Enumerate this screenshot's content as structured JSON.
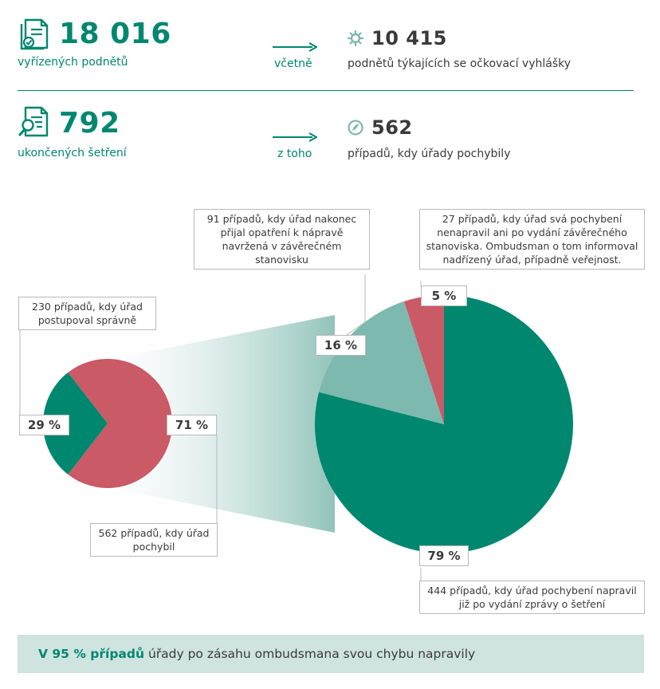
{
  "stats": {
    "top_left": {
      "value": "18 016",
      "label": "vyřízených podnětů",
      "icon": "document-check-icon"
    },
    "top_connector": "včetně",
    "top_right": {
      "value": "10 415",
      "label": "podnětů týkajících se očkovací vyhlášky",
      "icon": "virus-icon"
    },
    "bottom_left": {
      "value": "792",
      "label": "ukončených šetření",
      "icon": "document-search-icon"
    },
    "bottom_connector": "z toho",
    "bottom_right": {
      "value": "562",
      "label": "případů, kdy úřady pochybily",
      "icon": "feather-icon"
    }
  },
  "colors": {
    "green": "#00876f",
    "light_green": "#7db9ae",
    "red": "#c95a66",
    "footer_bg": "#cfe3df"
  },
  "chart_data": [
    {
      "type": "pie",
      "slices": [
        {
          "label": "29 %",
          "value": 29,
          "color": "#00876f",
          "callout": "230 případů, kdy úřad postupoval správně"
        },
        {
          "label": "71 %",
          "value": 71,
          "color": "#c95a66",
          "callout": "562 případů, kdy úřad pochybil"
        }
      ]
    },
    {
      "type": "pie",
      "slices": [
        {
          "label": "79 %",
          "value": 79,
          "color": "#00876f",
          "callout": "444 případů, kdy úřad pochybení napravil již po vydání zprávy o šetření"
        },
        {
          "label": "16 %",
          "value": 16,
          "color": "#7db9ae",
          "callout": "91 případů, kdy úřad nakonec přijal opatření k nápravě navržená v závěrečném stanovisku"
        },
        {
          "label": "5 %",
          "value": 5,
          "color": "#c95a66",
          "callout": "27 případů, kdy úřad svá pochybení nenapravil ani po vydání závěrečného stanoviska. Ombudsman o tom informoval nadřízený úřad, případně veřejnost."
        }
      ]
    }
  ],
  "footer": {
    "bold": "V 95 % případů",
    "rest": " úřady po zásahu ombudsmana svou chybu napravily"
  }
}
